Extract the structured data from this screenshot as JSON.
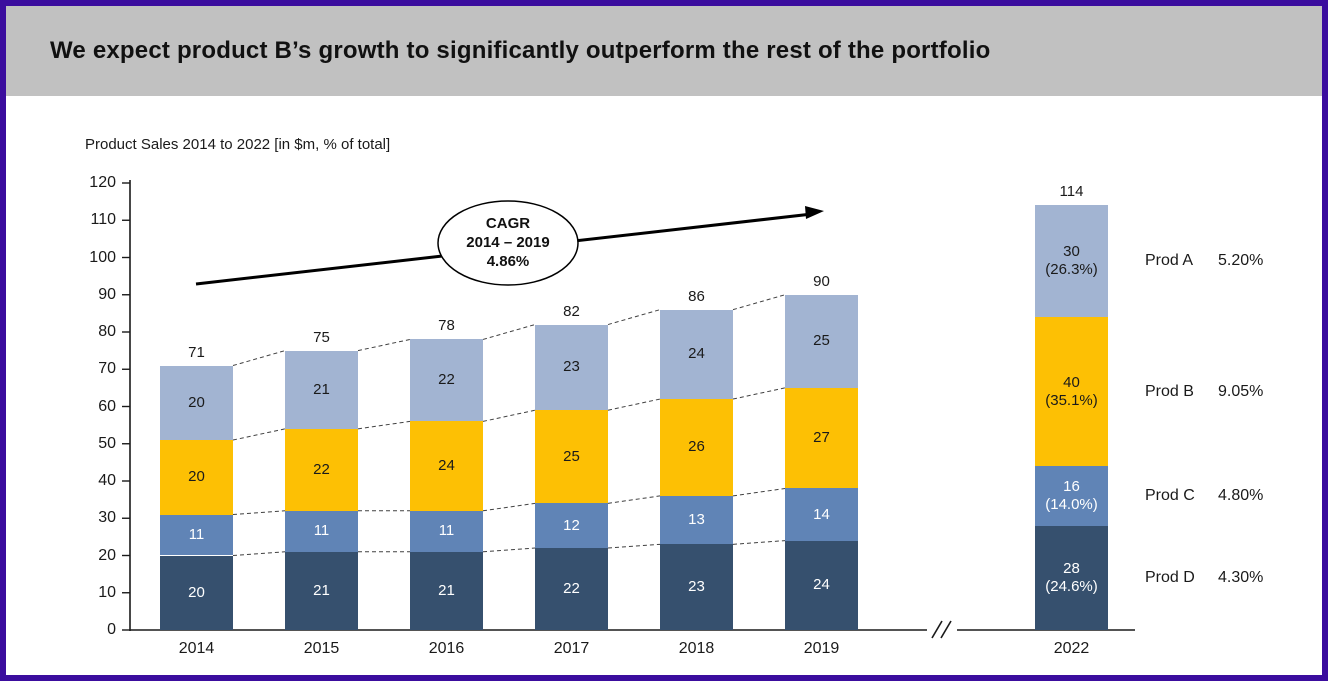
{
  "header": {
    "title": "We expect product B’s growth to significantly outperform the rest of the portfolio"
  },
  "theme": {
    "border_color": "#3b0d9e",
    "header_bg": "#c1c1c1",
    "axis_color": "#1a1a1a",
    "dash_line_color": "#404040"
  },
  "chart_data": {
    "type": "stacked-bar",
    "title": "Product Sales 2014 to 2022 [in $m, % of total]",
    "categories": [
      "2014",
      "2015",
      "2016",
      "2017",
      "2018",
      "2019",
      "2022"
    ],
    "series": [
      {
        "name": "Prod D",
        "color": "#36506e",
        "label_color": "#ffffff",
        "values": [
          20,
          21,
          21,
          22,
          23,
          24,
          28
        ],
        "last_pct": "(24.6%)",
        "cagr": "4.30%"
      },
      {
        "name": "Prod C",
        "color": "#6084b6",
        "label_color": "#ffffff",
        "values": [
          11,
          11,
          11,
          12,
          13,
          14,
          16
        ],
        "last_pct": "(14.0%)",
        "cagr": "4.80%"
      },
      {
        "name": "Prod B",
        "color": "#fdc004",
        "label_color": "#1a1a1a",
        "values": [
          20,
          22,
          24,
          25,
          26,
          27,
          40
        ],
        "last_pct": "(35.1%)",
        "cagr": "9.05%"
      },
      {
        "name": "Prod A",
        "color": "#a2b4d2",
        "label_color": "#1a1a1a",
        "values": [
          20,
          21,
          22,
          23,
          24,
          25,
          30
        ],
        "last_pct": "(26.3%)",
        "cagr": "5.20%"
      }
    ],
    "totals": [
      71,
      75,
      78,
      82,
      86,
      90,
      114
    ],
    "ylim": [
      0,
      120
    ],
    "ytick_step": 10,
    "axis_break": "//",
    "annotation": {
      "lines": [
        "CAGR",
        "2014 – 2019",
        "4.86%"
      ]
    },
    "legend_position": "right",
    "grid": false
  }
}
